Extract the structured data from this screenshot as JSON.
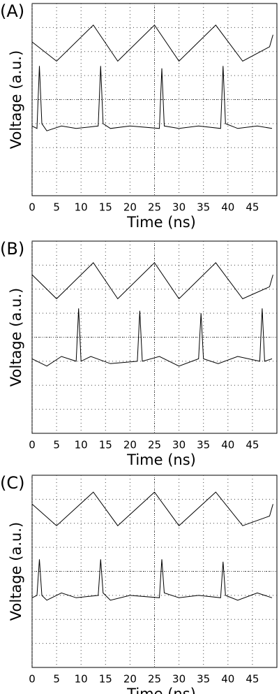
{
  "chart_data": [
    {
      "type": "line",
      "title": "(A)",
      "xlabel": "Time (ns)",
      "ylabel": "Voltage (a.u.)",
      "xlim": [
        0,
        50
      ],
      "xticks": [
        0,
        5,
        10,
        15,
        20,
        25,
        30,
        35,
        40,
        45
      ],
      "ylim": [
        0,
        8
      ],
      "grid": true,
      "series": [
        {
          "color": "#000000",
          "x": [
            0,
            5,
            12.5,
            17.5,
            25,
            30,
            37.5,
            43,
            48.5,
            49.2
          ],
          "values": [
            6.4,
            5.6,
            7.1,
            5.6,
            7.1,
            5.6,
            7.1,
            5.6,
            6.2,
            6.7
          ]
        },
        {
          "color": "#000000",
          "x": [
            0,
            1,
            1.5,
            2,
            3,
            6,
            9,
            13.5,
            14,
            14.5,
            16,
            20,
            26,
            26.5,
            27,
            30,
            34,
            38.5,
            39,
            39.5,
            42,
            46,
            49
          ],
          "values": [
            2.9,
            2.8,
            5.4,
            3.0,
            2.7,
            2.9,
            2.8,
            2.9,
            5.4,
            3.0,
            2.8,
            2.9,
            2.8,
            5.3,
            2.9,
            2.8,
            2.9,
            2.8,
            5.4,
            3.0,
            2.8,
            2.9,
            2.8
          ]
        }
      ]
    },
    {
      "type": "line",
      "title": "(B)",
      "xlabel": "Time (ns)",
      "ylabel": "Voltage (a.u.)",
      "xlim": [
        0,
        50
      ],
      "xticks": [
        0,
        5,
        10,
        15,
        20,
        25,
        30,
        35,
        40,
        45
      ],
      "ylim": [
        0,
        8
      ],
      "grid": true,
      "series": [
        {
          "color": "#000000",
          "x": [
            0,
            5,
            12.5,
            17.5,
            25,
            30,
            37.5,
            43,
            48.5,
            49.2
          ],
          "values": [
            6.6,
            5.6,
            7.1,
            5.6,
            7.1,
            5.6,
            7.1,
            5.6,
            6.1,
            6.6
          ]
        },
        {
          "color": "#000000",
          "x": [
            0,
            3,
            6,
            9,
            9.5,
            10,
            12,
            16,
            21.5,
            22,
            22.5,
            26,
            30,
            34,
            34.5,
            35,
            38,
            42,
            46.5,
            47,
            47.5,
            49
          ],
          "values": [
            3.1,
            2.8,
            3.2,
            3.0,
            5.2,
            3.0,
            3.2,
            2.9,
            3.0,
            5.1,
            3.0,
            3.2,
            2.8,
            3.1,
            5.0,
            3.1,
            2.9,
            3.2,
            3.0,
            5.2,
            3.0,
            3.1
          ]
        }
      ]
    },
    {
      "type": "line",
      "title": "(C)",
      "xlabel": "Time (ns)",
      "ylabel": "Voltage (a.u.)",
      "xlim": [
        0,
        50
      ],
      "xticks": [
        0,
        5,
        10,
        15,
        20,
        25,
        30,
        35,
        40,
        45
      ],
      "ylim": [
        0,
        8
      ],
      "grid": true,
      "series": [
        {
          "color": "#000000",
          "x": [
            0,
            5,
            12.5,
            17.5,
            25,
            30,
            37.5,
            43,
            48.5,
            49.2
          ],
          "values": [
            6.8,
            5.9,
            7.3,
            5.9,
            7.3,
            5.9,
            7.3,
            5.9,
            6.3,
            6.8
          ]
        },
        {
          "color": "#000000",
          "x": [
            0,
            1,
            1.5,
            2,
            3,
            6,
            9,
            13.5,
            14,
            14.5,
            16,
            20,
            26,
            26.5,
            27,
            30,
            34,
            38.5,
            39,
            39.5,
            42,
            46,
            49
          ],
          "values": [
            2.9,
            3.0,
            4.5,
            3.0,
            2.8,
            3.1,
            2.9,
            3.0,
            4.5,
            3.1,
            2.8,
            3.0,
            2.9,
            4.5,
            3.1,
            2.9,
            3.0,
            2.9,
            4.4,
            3.0,
            2.8,
            3.1,
            2.9
          ]
        }
      ]
    }
  ]
}
